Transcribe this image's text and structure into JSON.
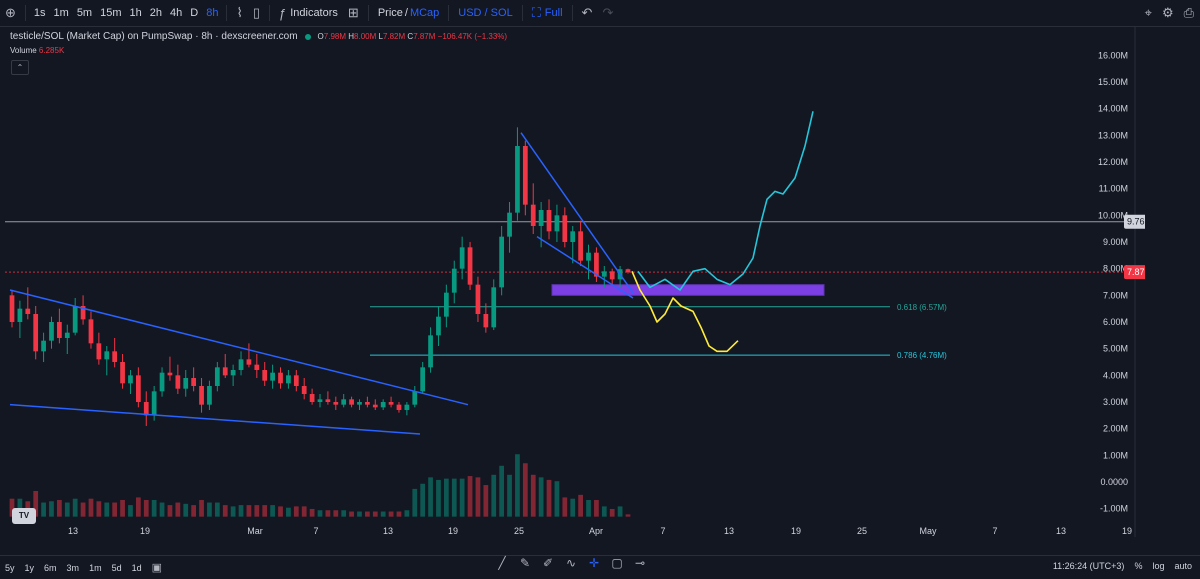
{
  "toolbar": {
    "intervals": [
      "1s",
      "1m",
      "5m",
      "15m",
      "1h",
      "2h",
      "4h",
      "D",
      "8h"
    ],
    "active_interval": "8h",
    "indicators_label": "Indicators",
    "price_label": "Price",
    "mcap_label": "MCap",
    "pair_label": "USD / SOL",
    "full_label": "Full"
  },
  "legend": {
    "title": "testicle/SOL (Market Cap) on PumpSwap · 8h · dexscreener.com",
    "o_label": "O",
    "o": "7.98M",
    "h_label": "H",
    "h": "8.00M",
    "l_label": "L",
    "l": "7.82M",
    "c_label": "C",
    "c": "7.87M",
    "change": "−106.47K (−1.33%)",
    "volume_label": "Volume",
    "volume_value": "6.285K"
  },
  "chart_data": {
    "type": "candlestick",
    "y_axis_ticks": [
      "16.00M",
      "15.00M",
      "14.00M",
      "13.00M",
      "12.00M",
      "11.00M",
      "10.00M",
      "9.00M",
      "8.00M",
      "7.00M",
      "6.00M",
      "5.00M",
      "4.00M",
      "3.00M",
      "2.00M",
      "1.00M",
      "0.0000",
      "-1.00M"
    ],
    "ylim": [
      -1.5,
      16.5
    ],
    "x_axis_ticks": [
      "13",
      "19",
      "Mar",
      "7",
      "13",
      "19",
      "25",
      "Apr",
      "7",
      "13",
      "19",
      "25",
      "May",
      "7",
      "13",
      "19"
    ],
    "price_lines": [
      {
        "label": "9.76M",
        "value": 9.76,
        "color": "#d1d4dc"
      },
      {
        "label": "7.87M",
        "value": 7.87,
        "color": "#f23645"
      }
    ],
    "fib_levels": [
      {
        "label": "0.618 (6.57M)",
        "value": 6.57,
        "color": "#26a69a"
      },
      {
        "label": "0.786 (4.76M)",
        "value": 4.76,
        "color": "#26c6da"
      }
    ],
    "support_zone": {
      "from": 7.0,
      "to": 7.4,
      "color": "#7b3fe4"
    },
    "candles": [
      [
        7.0,
        7.2,
        5.8,
        6.0
      ],
      [
        6.0,
        6.8,
        5.4,
        6.5
      ],
      [
        6.5,
        7.3,
        6.1,
        6.3
      ],
      [
        6.3,
        6.6,
        4.6,
        4.9
      ],
      [
        4.9,
        5.6,
        4.5,
        5.3
      ],
      [
        5.3,
        6.2,
        5.0,
        6.0
      ],
      [
        6.0,
        6.5,
        5.2,
        5.4
      ],
      [
        5.4,
        5.9,
        4.8,
        5.6
      ],
      [
        5.6,
        6.9,
        5.5,
        6.6
      ],
      [
        6.6,
        7.0,
        5.9,
        6.1
      ],
      [
        6.1,
        6.4,
        5.0,
        5.2
      ],
      [
        5.2,
        5.6,
        4.4,
        4.6
      ],
      [
        4.6,
        5.1,
        4.0,
        4.9
      ],
      [
        4.9,
        5.4,
        4.3,
        4.5
      ],
      [
        4.5,
        4.8,
        3.5,
        3.7
      ],
      [
        3.7,
        4.2,
        3.3,
        4.0
      ],
      [
        4.0,
        4.3,
        2.8,
        3.0
      ],
      [
        3.0,
        3.4,
        2.1,
        2.5
      ],
      [
        2.5,
        3.6,
        2.3,
        3.4
      ],
      [
        3.4,
        4.3,
        3.2,
        4.1
      ],
      [
        4.1,
        4.7,
        3.8,
        4.0
      ],
      [
        4.0,
        4.4,
        3.3,
        3.5
      ],
      [
        3.5,
        4.2,
        3.2,
        3.9
      ],
      [
        3.9,
        4.3,
        3.4,
        3.6
      ],
      [
        3.6,
        3.9,
        2.6,
        2.9
      ],
      [
        2.9,
        3.8,
        2.7,
        3.6
      ],
      [
        3.6,
        4.5,
        3.4,
        4.3
      ],
      [
        4.3,
        4.8,
        3.9,
        4.0
      ],
      [
        4.0,
        4.4,
        3.6,
        4.2
      ],
      [
        4.2,
        4.9,
        4.0,
        4.6
      ],
      [
        4.6,
        5.2,
        4.3,
        4.4
      ],
      [
        4.4,
        4.8,
        3.9,
        4.2
      ],
      [
        4.2,
        4.5,
        3.6,
        3.8
      ],
      [
        3.8,
        4.4,
        3.5,
        4.1
      ],
      [
        4.1,
        4.3,
        3.5,
        3.7
      ],
      [
        3.7,
        4.2,
        3.5,
        4.0
      ],
      [
        4.0,
        4.2,
        3.4,
        3.6
      ],
      [
        3.6,
        3.9,
        3.1,
        3.3
      ],
      [
        3.3,
        3.5,
        2.9,
        3.0
      ],
      [
        3.0,
        3.3,
        2.8,
        3.1
      ],
      [
        3.1,
        3.4,
        2.9,
        3.0
      ],
      [
        3.0,
        3.2,
        2.7,
        2.9
      ],
      [
        2.9,
        3.3,
        2.8,
        3.1
      ],
      [
        3.1,
        3.2,
        2.8,
        2.9
      ],
      [
        2.9,
        3.1,
        2.7,
        3.0
      ],
      [
        3.0,
        3.2,
        2.8,
        2.9
      ],
      [
        2.9,
        3.1,
        2.7,
        2.8
      ],
      [
        2.8,
        3.1,
        2.7,
        3.0
      ],
      [
        3.0,
        3.2,
        2.8,
        2.9
      ],
      [
        2.9,
        3.0,
        2.6,
        2.7
      ],
      [
        2.7,
        3.0,
        2.5,
        2.9
      ],
      [
        2.9,
        3.6,
        2.8,
        3.4
      ],
      [
        3.4,
        4.5,
        3.3,
        4.3
      ],
      [
        4.3,
        5.8,
        4.1,
        5.5
      ],
      [
        5.5,
        6.6,
        5.1,
        6.2
      ],
      [
        6.2,
        7.4,
        5.8,
        7.1
      ],
      [
        7.1,
        8.3,
        6.7,
        8.0
      ],
      [
        8.0,
        9.2,
        7.6,
        8.8
      ],
      [
        8.8,
        9.0,
        7.2,
        7.4
      ],
      [
        7.4,
        7.7,
        6.0,
        6.3
      ],
      [
        6.3,
        6.7,
        5.6,
        5.8
      ],
      [
        5.8,
        7.6,
        5.7,
        7.3
      ],
      [
        7.3,
        9.6,
        7.0,
        9.2
      ],
      [
        9.2,
        10.5,
        8.6,
        10.1
      ],
      [
        10.1,
        13.3,
        9.8,
        12.6
      ],
      [
        12.6,
        12.8,
        10.0,
        10.4
      ],
      [
        10.4,
        11.2,
        9.3,
        9.6
      ],
      [
        9.6,
        10.5,
        8.8,
        10.2
      ],
      [
        10.2,
        10.6,
        9.1,
        9.4
      ],
      [
        9.4,
        10.4,
        9.0,
        10.0
      ],
      [
        10.0,
        10.3,
        8.8,
        9.0
      ],
      [
        9.0,
        9.6,
        8.2,
        9.4
      ],
      [
        9.4,
        9.8,
        8.1,
        8.3
      ],
      [
        8.3,
        8.9,
        7.6,
        8.6
      ],
      [
        8.6,
        8.8,
        7.5,
        7.7
      ],
      [
        7.7,
        8.1,
        7.3,
        7.9
      ],
      [
        7.9,
        8.0,
        7.4,
        7.6
      ],
      [
        7.6,
        8.1,
        7.3,
        7.98
      ],
      [
        7.98,
        8.0,
        7.82,
        7.87
      ]
    ],
    "volume_max": 12,
    "projections": [
      {
        "color": "#26c6da",
        "path": [
          [
            633,
            7.9
          ],
          [
            645,
            7.3
          ],
          [
            660,
            7.6
          ],
          [
            675,
            7.2
          ],
          [
            688,
            7.9
          ],
          [
            700,
            8.0
          ],
          [
            712,
            7.6
          ],
          [
            725,
            7.4
          ],
          [
            738,
            7.8
          ],
          [
            748,
            8.4
          ],
          [
            755,
            9.6
          ],
          [
            762,
            10.6
          ],
          [
            770,
            10.9
          ],
          [
            778,
            10.8
          ],
          [
            790,
            11.4
          ],
          [
            800,
            12.6
          ],
          [
            808,
            13.9
          ]
        ]
      },
      {
        "color": "#ffeb3b",
        "path": [
          [
            627,
            7.9
          ],
          [
            635,
            7.2
          ],
          [
            645,
            6.6
          ],
          [
            652,
            6.0
          ],
          [
            660,
            6.3
          ],
          [
            668,
            6.9
          ],
          [
            676,
            6.6
          ],
          [
            688,
            6.4
          ],
          [
            696,
            5.8
          ],
          [
            704,
            5.1
          ],
          [
            712,
            4.9
          ],
          [
            722,
            4.9
          ],
          [
            733,
            5.3
          ]
        ]
      }
    ],
    "trendlines": [
      {
        "color": "#2962ff",
        "from": [
          5,
          7.2
        ],
        "to": [
          463,
          2.9
        ]
      },
      {
        "color": "#2962ff",
        "from": [
          5,
          2.9
        ],
        "to": [
          415,
          1.8
        ]
      },
      {
        "color": "#2962ff",
        "from": [
          516,
          13.1
        ],
        "to": [
          628,
          7.1
        ]
      },
      {
        "color": "#2962ff",
        "from": [
          532,
          9.2
        ],
        "to": [
          628,
          6.9
        ]
      }
    ]
  },
  "bottom": {
    "ranges": [
      "5y",
      "1y",
      "6m",
      "3m",
      "1m",
      "5d",
      "1d"
    ],
    "time": "11:26:24 (UTC+3)",
    "percent_label": "%",
    "log_label": "log",
    "auto_label": "auto"
  }
}
